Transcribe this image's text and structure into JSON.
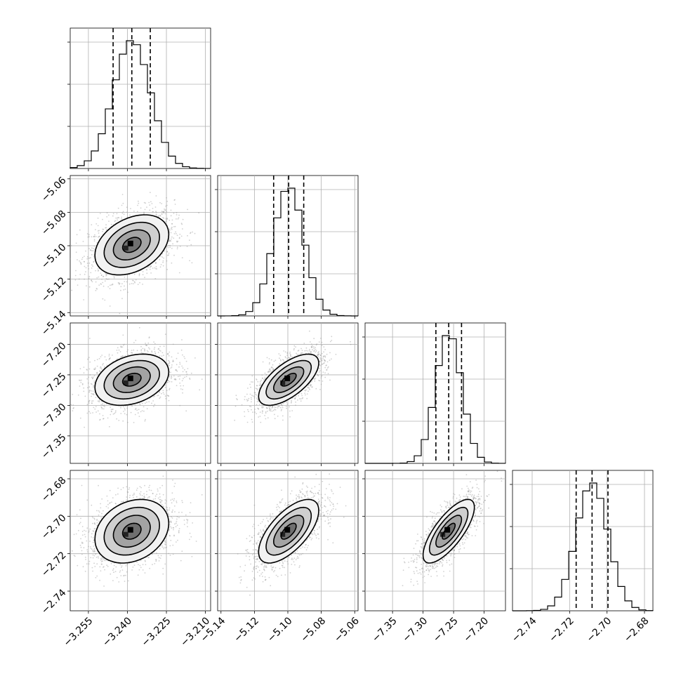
{
  "chart_data": {
    "type": "corner",
    "title": "",
    "parameters": [
      {
        "range": [
          -3.262,
          -3.208
        ],
        "ticks": [
          -3.255,
          -3.24,
          -3.225,
          -3.21
        ],
        "tick_labels": [
          "−3.255",
          "−3.240",
          "−3.225",
          "−3.210"
        ],
        "quantiles": [
          -3.2455,
          -3.2383,
          -3.2312
        ],
        "mean": -3.2383,
        "sd": 0.0071
      },
      {
        "range": [
          -5.142,
          -5.058
        ],
        "ticks": [
          -5.14,
          -5.12,
          -5.1,
          -5.08,
          -5.06
        ],
        "tick_labels": [
          "−5.14",
          "−5.12",
          "−5.10",
          "−5.08",
          "−5.06"
        ],
        "quantiles": [
          -5.1085,
          -5.0995,
          -5.0905
        ],
        "mean": -5.0995,
        "sd": 0.009
      },
      {
        "range": [
          -7.395,
          -7.165
        ],
        "ticks": [
          -7.35,
          -7.3,
          -7.25,
          -7.2
        ],
        "tick_labels": [
          "−7.35",
          "−7.30",
          "−7.25",
          "−7.20"
        ],
        "quantiles": [
          -7.279,
          -7.258,
          -7.237
        ],
        "mean": -7.258,
        "sd": 0.021
      },
      {
        "range": [
          -2.7505,
          -2.6755
        ],
        "ticks": [
          -2.74,
          -2.72,
          -2.7,
          -2.68
        ],
        "tick_labels": [
          "−2.74",
          "−2.72",
          "−2.70",
          "−2.68"
        ],
        "quantiles": [
          -2.7165,
          -2.708,
          -2.6995
        ],
        "mean": -2.708,
        "sd": 0.0085
      }
    ],
    "correlations": [
      [
        1.0,
        0.35,
        0.3,
        0.25
      ],
      [
        0.35,
        1.0,
        0.65,
        0.65
      ],
      [
        0.3,
        0.65,
        1.0,
        0.75
      ],
      [
        0.25,
        0.65,
        0.75,
        1.0
      ]
    ],
    "contour_levels_sigma": [
      0.5,
      1.0,
      1.5,
      2.0
    ],
    "grid": true,
    "colors": {
      "line": "#000000",
      "points": "#9a9a9a",
      "grid": "#b0b0b0"
    }
  }
}
